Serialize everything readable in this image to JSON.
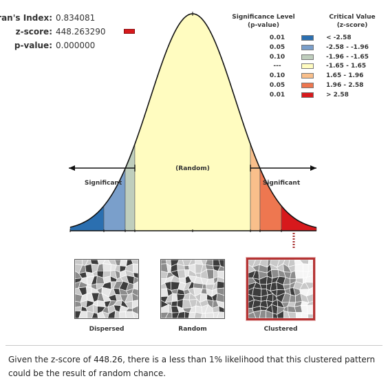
{
  "stats": {
    "moran_label": "Moran's Index:",
    "moran_value": "0.834081",
    "zscore_label": "z-score:",
    "zscore_value": "448.263290",
    "pvalue_label": "p-value:",
    "pvalue_value": "0.000000",
    "zscore_marker_color": "#d7191c"
  },
  "legend": {
    "sig_title_line1": "Significance Level",
    "sig_title_line2": "(p-value)",
    "crit_title_line1": "Critical Value",
    "crit_title_line2": "(z-score)",
    "rows": [
      {
        "p": "0.01",
        "z": "< -2.58",
        "color": "#2b6fb0"
      },
      {
        "p": "0.05",
        "z": "-2.58 - -1.96",
        "color": "#7a9fcb"
      },
      {
        "p": "0.10",
        "z": "-1.96 - -1.65",
        "color": "#bfcebd"
      },
      {
        "p": "---",
        "z": "-1.65 - 1.65",
        "color": "#fffcc0"
      },
      {
        "p": "0.10",
        "z": "1.65 - 1.96",
        "color": "#f9bf8b"
      },
      {
        "p": "0.05",
        "z": "1.96 - 2.58",
        "color": "#ee7750"
      },
      {
        "p": "0.01",
        "z": "> 2.58",
        "color": "#d7191c"
      }
    ]
  },
  "curve": {
    "random_label": "(Random)",
    "left_label": "Significant",
    "right_label": "Significant"
  },
  "maps": {
    "dispersed": "Dispersed",
    "random": "Random",
    "clustered": "Clustered"
  },
  "conclusion": "Given the z-score of 448.26, there is a less than 1% likelihood that this clustered pattern could be the result of random chance."
}
